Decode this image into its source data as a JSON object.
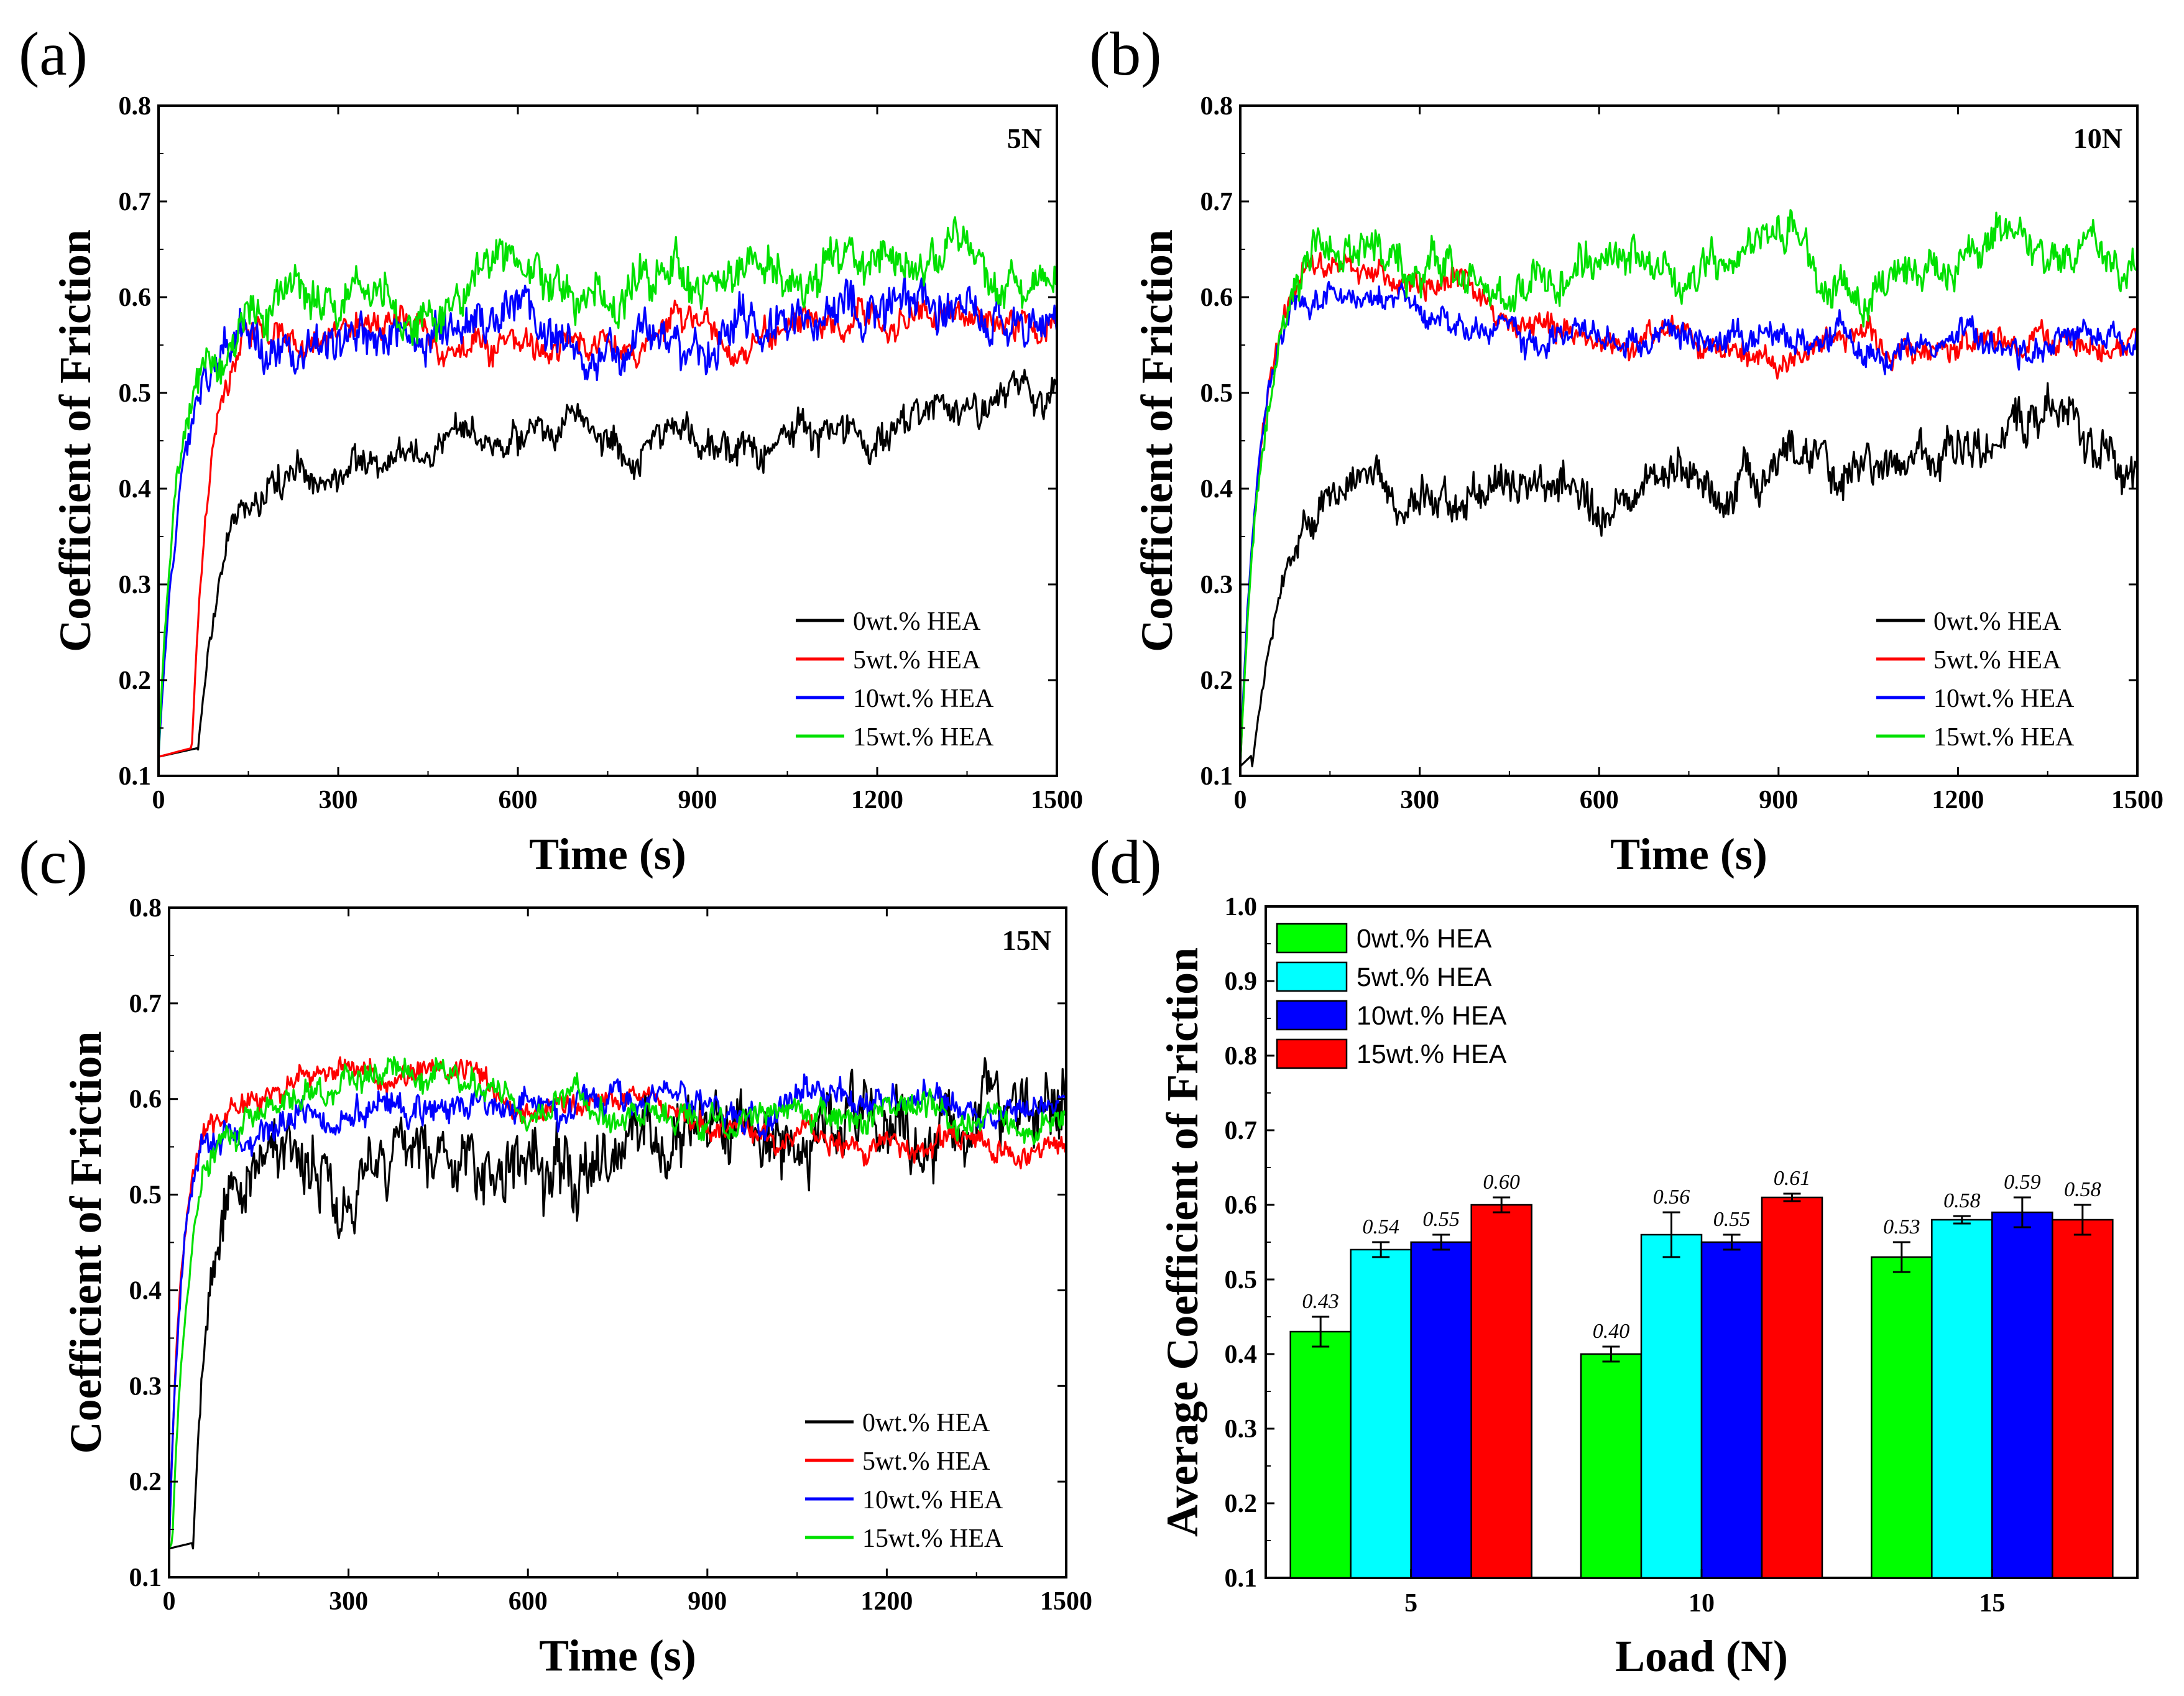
{
  "panels": {
    "a": {
      "label": "(a)",
      "load_label": "5N"
    },
    "b": {
      "label": "(b)",
      "load_label": "10N"
    },
    "c": {
      "label": "(c)",
      "load_label": "15N"
    },
    "d": {
      "label": "(d)"
    }
  },
  "chart_data": [
    {
      "id": "a",
      "type": "line",
      "title": "5N",
      "xlabel": "Time (s)",
      "ylabel": "Coefficient of Friction",
      "xlim": [
        0,
        1500
      ],
      "ylim": [
        0.1,
        0.8
      ],
      "xticks": [
        0,
        300,
        600,
        900,
        1200,
        1500
      ],
      "yticks": [
        0.1,
        0.2,
        0.3,
        0.4,
        0.5,
        0.6,
        0.7,
        0.8
      ],
      "legend_position": "bottom-right",
      "series": [
        {
          "name": "0wt.% HEA",
          "color": "#000000",
          "start": 0.12,
          "rise": 40,
          "delay": 65,
          "plateau": [
            [
              150,
              0.41
            ],
            [
              300,
              0.42
            ],
            [
              500,
              0.45
            ],
            [
              700,
              0.47
            ],
            [
              900,
              0.44
            ],
            [
              1100,
              0.46
            ],
            [
              1300,
              0.48
            ],
            [
              1500,
              0.49
            ]
          ],
          "noise": 0.018
        },
        {
          "name": "5wt.% HEA",
          "color": "#ff0000",
          "start": 0.12,
          "rise": 30,
          "delay": 55,
          "plateau": [
            [
              150,
              0.57
            ],
            [
              400,
              0.56
            ],
            [
              600,
              0.55
            ],
            [
              900,
              0.56
            ],
            [
              1200,
              0.58
            ],
            [
              1500,
              0.57
            ]
          ],
          "noise": 0.015
        },
        {
          "name": "10wt.% HEA",
          "color": "#0000ff",
          "start": 0.12,
          "rise": 40,
          "delay": 0,
          "plateau": [
            [
              100,
              0.56
            ],
            [
              400,
              0.56
            ],
            [
              600,
              0.57
            ],
            [
              800,
              0.54
            ],
            [
              1100,
              0.59
            ],
            [
              1500,
              0.58
            ]
          ],
          "noise": 0.022
        },
        {
          "name": "15wt.% HEA",
          "color": "#00e000",
          "start": 0.12,
          "rise": 30,
          "delay": 0,
          "plateau": [
            [
              100,
              0.57
            ],
            [
              400,
              0.58
            ],
            [
              600,
              0.62
            ],
            [
              900,
              0.61
            ],
            [
              1200,
              0.64
            ],
            [
              1500,
              0.62
            ]
          ],
          "noise": 0.022
        }
      ]
    },
    {
      "id": "b",
      "type": "line",
      "title": "10N",
      "xlabel": "Time (s)",
      "ylabel": "Coefficient of Friction",
      "xlim": [
        0,
        1500
      ],
      "ylim": [
        0.1,
        0.8
      ],
      "xticks": [
        0,
        300,
        600,
        900,
        1200,
        1500
      ],
      "yticks": [
        0.1,
        0.2,
        0.3,
        0.4,
        0.5,
        0.6,
        0.7,
        0.8
      ],
      "legend_position": "bottom-right",
      "series": [
        {
          "name": "0wt.% HEA",
          "color": "#000000",
          "start": 0.11,
          "rise": 55,
          "delay": 20,
          "plateau": [
            [
              120,
              0.41
            ],
            [
              250,
              0.38
            ],
            [
              400,
              0.4
            ],
            [
              600,
              0.39
            ],
            [
              800,
              0.41
            ],
            [
              1000,
              0.42
            ],
            [
              1200,
              0.44
            ],
            [
              1350,
              0.48
            ],
            [
              1500,
              0.44
            ]
          ],
          "noise": 0.022
        },
        {
          "name": "5wt.% HEA",
          "color": "#ff0000",
          "start": 0.11,
          "rise": 35,
          "delay": 0,
          "plateau": [
            [
              150,
              0.64
            ],
            [
              300,
              0.61
            ],
            [
              500,
              0.57
            ],
            [
              800,
              0.55
            ],
            [
              1100,
              0.55
            ],
            [
              1500,
              0.55
            ]
          ],
          "noise": 0.013
        },
        {
          "name": "10wt.% HEA",
          "color": "#0000ff",
          "start": 0.11,
          "rise": 30,
          "delay": 0,
          "plateau": [
            [
              150,
              0.6
            ],
            [
              300,
              0.58
            ],
            [
              500,
              0.55
            ],
            [
              800,
              0.56
            ],
            [
              1100,
              0.55
            ],
            [
              1500,
              0.55
            ]
          ],
          "noise": 0.014
        },
        {
          "name": "15wt.% HEA",
          "color": "#00e000",
          "start": 0.11,
          "rise": 40,
          "delay": 0,
          "plateau": [
            [
              200,
              0.67
            ],
            [
              450,
              0.6
            ],
            [
              700,
              0.63
            ],
            [
              900,
              0.66
            ],
            [
              1050,
              0.6
            ],
            [
              1300,
              0.65
            ],
            [
              1500,
              0.63
            ]
          ],
          "noise": 0.02
        }
      ]
    },
    {
      "id": "c",
      "type": "line",
      "title": "15N",
      "xlabel": "Time (s)",
      "ylabel": "Coefficient of Friction",
      "xlim": [
        0,
        1500
      ],
      "ylim": [
        0.1,
        0.8
      ],
      "xticks": [
        0,
        300,
        600,
        900,
        1200,
        1500
      ],
      "yticks": [
        0.1,
        0.2,
        0.3,
        0.4,
        0.5,
        0.6,
        0.7,
        0.8
      ],
      "legend_position": "bottom-right",
      "series": [
        {
          "name": "0wt.% HEA",
          "color": "#000000",
          "start": 0.13,
          "rise": 30,
          "delay": 40,
          "plateau": [
            [
              100,
              0.55
            ],
            [
              300,
              0.52
            ],
            [
              500,
              0.52
            ],
            [
              700,
              0.54
            ],
            [
              900,
              0.56
            ],
            [
              1100,
              0.59
            ],
            [
              1300,
              0.58
            ],
            [
              1500,
              0.6
            ]
          ],
          "noise": 0.035
        },
        {
          "name": "5wt.% HEA",
          "color": "#ff0000",
          "start": 0.13,
          "rise": 20,
          "delay": 0,
          "plateau": [
            [
              100,
              0.58
            ],
            [
              250,
              0.62
            ],
            [
              500,
              0.62
            ],
            [
              800,
              0.59
            ],
            [
              1000,
              0.56
            ],
            [
              1200,
              0.55
            ],
            [
              1500,
              0.56
            ]
          ],
          "noise": 0.012
        },
        {
          "name": "10wt.% HEA",
          "color": "#0000ff",
          "start": 0.13,
          "rise": 20,
          "delay": 0,
          "plateau": [
            [
              100,
              0.58
            ],
            [
              400,
              0.59
            ],
            [
              700,
              0.6
            ],
            [
              1000,
              0.6
            ],
            [
              1300,
              0.6
            ],
            [
              1500,
              0.59
            ]
          ],
          "noise": 0.015
        },
        {
          "name": "15wt.% HEA",
          "color": "#00e000",
          "start": 0.13,
          "rise": 25,
          "delay": 5,
          "plateau": [
            [
              100,
              0.57
            ],
            [
              300,
              0.62
            ],
            [
              600,
              0.6
            ],
            [
              900,
              0.58
            ],
            [
              1200,
              0.58
            ],
            [
              1500,
              0.58
            ]
          ],
          "noise": 0.014
        }
      ]
    },
    {
      "id": "d",
      "type": "bar",
      "xlabel": "Load (N)",
      "ylabel": "Average Coefficient of Friction",
      "categories": [
        "5",
        "10",
        "15"
      ],
      "ylim": [
        0.1,
        1.0
      ],
      "yticks": [
        0.1,
        0.2,
        0.3,
        0.4,
        0.5,
        0.6,
        0.7,
        0.8,
        0.9,
        1.0
      ],
      "legend_position": "top-left",
      "series": [
        {
          "name": "0wt.% HEA",
          "color": "#00ff00",
          "values": [
            0.43,
            0.4,
            0.53
          ],
          "errors": [
            0.02,
            0.01,
            0.02
          ],
          "labels": [
            "0.43",
            "0.40",
            "0.53"
          ]
        },
        {
          "name": "5wt.% HEA",
          "color": "#00ffff",
          "values": [
            0.54,
            0.56,
            0.58
          ],
          "errors": [
            0.01,
            0.03,
            0.005
          ],
          "labels": [
            "0.54",
            "0.56",
            "0.58"
          ]
        },
        {
          "name": "10wt.% HEA",
          "color": "#0000ff",
          "values": [
            0.55,
            0.55,
            0.59
          ],
          "errors": [
            0.01,
            0.01,
            0.02
          ],
          "labels": [
            "0.55",
            "0.55",
            "0.59"
          ]
        },
        {
          "name": "15wt.% HEA",
          "color": "#ff0000",
          "values": [
            0.6,
            0.61,
            0.58
          ],
          "errors": [
            0.01,
            0.005,
            0.02
          ],
          "labels": [
            "0.60",
            "0.61",
            "0.58"
          ]
        }
      ]
    }
  ]
}
